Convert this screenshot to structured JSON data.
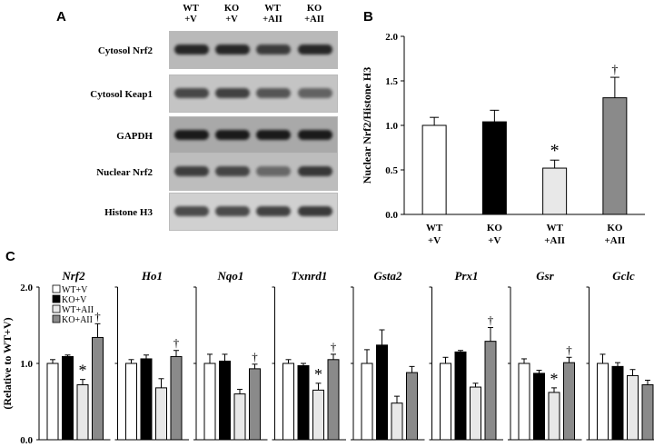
{
  "panelA": {
    "letter": "A",
    "lanes": [
      {
        "line1": "WT",
        "line2": "+V"
      },
      {
        "line1": "KO",
        "line2": "+V"
      },
      {
        "line1": "WT",
        "line2": "+AII"
      },
      {
        "line1": "KO",
        "line2": "+AII"
      }
    ],
    "blots": [
      {
        "label": "Cytosol Nrf2",
        "bg": "#b9b9b9",
        "band": "#262626",
        "intensity": [
          1.0,
          1.0,
          0.85,
          1.0
        ]
      },
      {
        "label": "Cytosol Keap1",
        "bg": "#c4c4c4",
        "band": "#3a3a3a",
        "intensity": [
          0.9,
          0.95,
          0.8,
          0.7
        ]
      },
      {
        "label": "GAPDH",
        "bg": "#a9a9a9",
        "band": "#1a1a1a",
        "intensity": [
          1.0,
          1.0,
          1.0,
          1.0
        ]
      },
      {
        "label": "Nuclear Nrf2",
        "bg": "#bdbdbd",
        "band": "#303030",
        "intensity": [
          0.9,
          0.85,
          0.6,
          0.95
        ]
      },
      {
        "label": "Histone H3",
        "bg": "#d0d0d0",
        "band": "#2a2a2a",
        "intensity": [
          0.8,
          0.8,
          0.85,
          0.9
        ]
      }
    ]
  },
  "chart_data": [
    {
      "panel": "B",
      "type": "bar",
      "ylabel": "Nuclear Nrf2/Histone H3",
      "ylim": [
        0,
        2.0
      ],
      "yticks": [
        "0.0",
        "0.5",
        "1.0",
        "1.5",
        "2.0"
      ],
      "categories": [
        {
          "line1": "WT",
          "line2": "+V"
        },
        {
          "line1": "KO",
          "line2": "+V"
        },
        {
          "line1": "WT",
          "line2": "+AII"
        },
        {
          "line1": "KO",
          "line2": "+AII"
        }
      ],
      "values": [
        1.0,
        1.04,
        0.52,
        1.31
      ],
      "errors": [
        0.09,
        0.13,
        0.09,
        0.23
      ],
      "marks": [
        "",
        "",
        "*",
        "†"
      ],
      "colors": [
        "#ffffff",
        "#000000",
        "#e8e8e8",
        "#8a8a8a"
      ]
    },
    {
      "panel": "C",
      "type": "bar",
      "ylabel": "(Relative to WT+V)",
      "ylim": [
        0,
        2.0
      ],
      "yticks": [
        "0.0",
        "1.0",
        "2.0"
      ],
      "legend": [
        "WT+V",
        "KO+V",
        "WT+AII",
        "KO+AII"
      ],
      "colors": [
        "#ffffff",
        "#000000",
        "#e8e8e8",
        "#8a8a8a"
      ],
      "genes": [
        {
          "name": "Nrf2",
          "values": [
            1.0,
            1.09,
            0.72,
            1.34
          ],
          "errors": [
            0.05,
            0.02,
            0.07,
            0.18
          ],
          "marks": [
            "",
            "",
            "*",
            "†"
          ]
        },
        {
          "name": "Ho1",
          "values": [
            1.0,
            1.06,
            0.68,
            1.09
          ],
          "errors": [
            0.05,
            0.05,
            0.12,
            0.08
          ],
          "marks": [
            "",
            "",
            "",
            "†"
          ]
        },
        {
          "name": "Nqo1",
          "values": [
            1.0,
            1.03,
            0.6,
            0.93
          ],
          "errors": [
            0.12,
            0.09,
            0.06,
            0.06
          ],
          "marks": [
            "",
            "",
            "",
            "†"
          ]
        },
        {
          "name": "Txnrd1",
          "values": [
            1.0,
            0.97,
            0.65,
            1.05
          ],
          "errors": [
            0.05,
            0.03,
            0.09,
            0.07
          ],
          "marks": [
            "",
            "",
            "*",
            "†"
          ]
        },
        {
          "name": "Gsta2",
          "values": [
            1.0,
            1.24,
            0.48,
            0.88
          ],
          "errors": [
            0.18,
            0.2,
            0.09,
            0.08
          ],
          "marks": [
            "",
            "",
            "",
            ""
          ]
        },
        {
          "name": "Prx1",
          "values": [
            1.0,
            1.15,
            0.69,
            1.29
          ],
          "errors": [
            0.08,
            0.02,
            0.05,
            0.18
          ],
          "marks": [
            "",
            "",
            "",
            "†"
          ]
        },
        {
          "name": "Gsr",
          "values": [
            1.0,
            0.87,
            0.62,
            1.01
          ],
          "errors": [
            0.06,
            0.04,
            0.06,
            0.07
          ],
          "marks": [
            "",
            "",
            "*",
            "†"
          ]
        },
        {
          "name": "Gclc",
          "values": [
            1.0,
            0.96,
            0.84,
            0.72
          ],
          "errors": [
            0.12,
            0.05,
            0.08,
            0.06
          ],
          "marks": [
            "",
            "",
            "",
            ""
          ]
        }
      ]
    }
  ]
}
